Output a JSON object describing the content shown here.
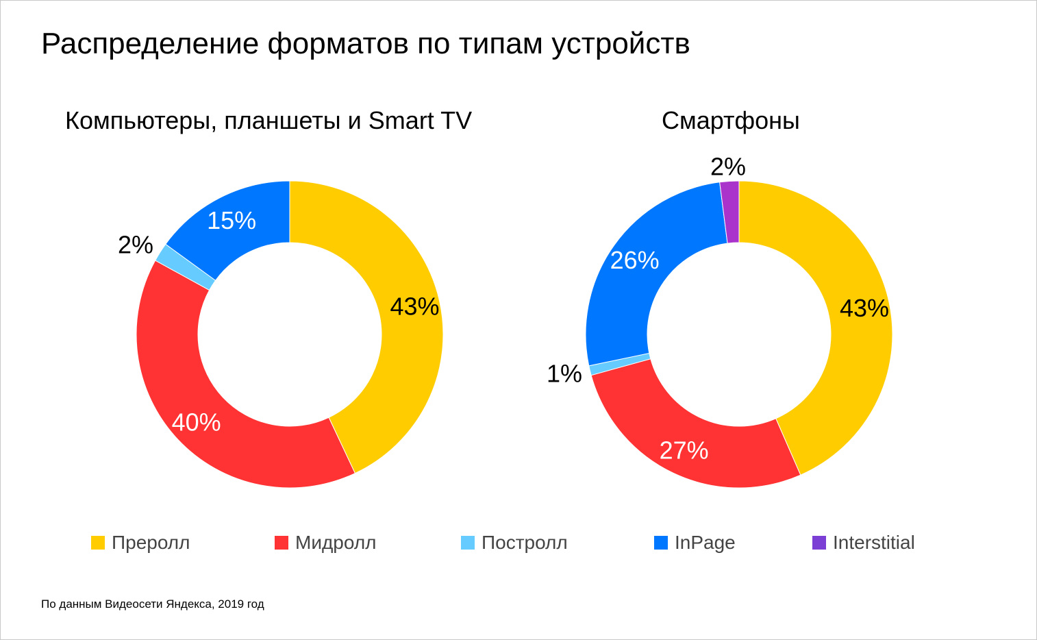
{
  "title": "Распределение форматов по типам устройств",
  "source_note": "По данным Видеосети Яндекса, 2019 год",
  "colors": {
    "Преролл": "#FFCC00",
    "Мидролл": "#FF3333",
    "Постролл": "#66CCFF",
    "InPage": "#0077FF",
    "Interstitial": "#AA33CC"
  },
  "legend": [
    {
      "label": "Преролл",
      "color": "#FFCC00"
    },
    {
      "label": "Мидролл",
      "color": "#FF3333"
    },
    {
      "label": "Постролл",
      "color": "#66CCFF"
    },
    {
      "label": "InPage",
      "color": "#0077FF"
    },
    {
      "label": "Interstitial",
      "color": "#7B3FD6"
    }
  ],
  "chart_data": [
    {
      "type": "pie",
      "variant": "donut",
      "title": "Компьютеры, планшеты и Smart TV",
      "categories": [
        "Преролл",
        "Мидролл",
        "Постролл",
        "InPage"
      ],
      "values": [
        43,
        40,
        2,
        15
      ],
      "labels": [
        "43%",
        "40%",
        "2%",
        "15%"
      ],
      "label_colors": [
        "#000000",
        "#ffffff",
        "#000000",
        "#ffffff"
      ]
    },
    {
      "type": "pie",
      "variant": "donut",
      "title": "Смартфоны",
      "categories": [
        "Преролл",
        "Мидролл",
        "Постролл",
        "InPage",
        "Interstitial"
      ],
      "values": [
        43,
        27,
        1,
        26,
        2
      ],
      "labels": [
        "43%",
        "27%",
        "1%",
        "26%",
        "2%"
      ],
      "label_colors": [
        "#000000",
        "#ffffff",
        "#000000",
        "#ffffff",
        "#000000"
      ]
    }
  ]
}
